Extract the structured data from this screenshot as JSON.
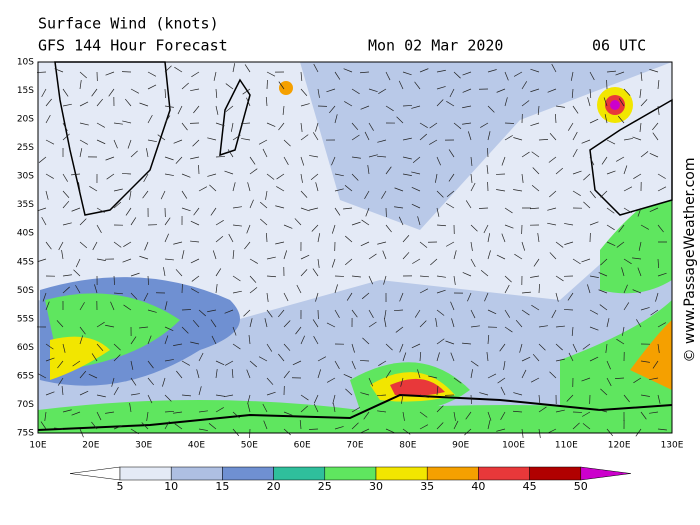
{
  "header": {
    "title": "Surface Wind (knots)",
    "subtitle": "GFS 144 Hour Forecast",
    "date": "Mon 02 Mar 2020",
    "time": "06 UTC"
  },
  "map": {
    "latitudes": [
      "10S",
      "15S",
      "20S",
      "25S",
      "30S",
      "35S",
      "40S",
      "45S",
      "50S",
      "55S",
      "60S",
      "65S",
      "70S",
      "75S"
    ],
    "longitudes": [
      "10E",
      "20E",
      "30E",
      "40E",
      "50E",
      "60E",
      "70E",
      "80E",
      "90E",
      "100E",
      "110E",
      "120E",
      "130E"
    ]
  },
  "colorbar": {
    "labels": [
      5,
      10,
      15,
      20,
      25,
      30,
      35,
      40,
      45,
      50
    ],
    "colors": [
      "#ffffff",
      "#e4eaf6",
      "#aebfe2",
      "#6f90d2",
      "#2fbf9c",
      "#5fe65f",
      "#f2e600",
      "#f5a000",
      "#e8383a",
      "#b00000",
      "#cc00cc"
    ]
  },
  "credit": "© www.PassageWeather.com"
}
